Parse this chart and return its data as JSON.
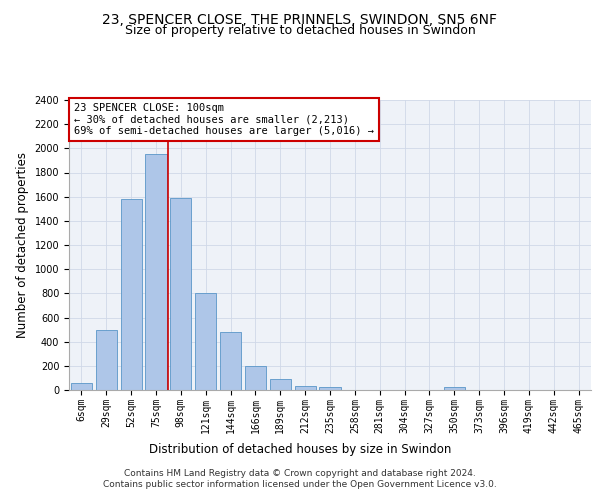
{
  "title_line1": "23, SPENCER CLOSE, THE PRINNELS, SWINDON, SN5 6NF",
  "title_line2": "Size of property relative to detached houses in Swindon",
  "xlabel": "Distribution of detached houses by size in Swindon",
  "ylabel": "Number of detached properties",
  "categories": [
    "6sqm",
    "29sqm",
    "52sqm",
    "75sqm",
    "98sqm",
    "121sqm",
    "144sqm",
    "166sqm",
    "189sqm",
    "212sqm",
    "235sqm",
    "258sqm",
    "281sqm",
    "304sqm",
    "327sqm",
    "350sqm",
    "373sqm",
    "396sqm",
    "419sqm",
    "442sqm",
    "465sqm"
  ],
  "bar_heights": [
    60,
    500,
    1580,
    1950,
    1590,
    800,
    480,
    195,
    90,
    35,
    28,
    0,
    0,
    0,
    0,
    22,
    0,
    0,
    0,
    0,
    0
  ],
  "bar_color": "#aec6e8",
  "bar_edge_color": "#5a96c8",
  "grid_color": "#d0d8e8",
  "background_color": "#eef2f8",
  "annotation_text": "23 SPENCER CLOSE: 100sqm\n← 30% of detached houses are smaller (2,213)\n69% of semi-detached houses are larger (5,016) →",
  "annotation_box_color": "#ffffff",
  "annotation_box_edge": "#cc0000",
  "vline_color": "#cc0000",
  "vline_x": 3.5,
  "ylim": [
    0,
    2400
  ],
  "yticks": [
    0,
    200,
    400,
    600,
    800,
    1000,
    1200,
    1400,
    1600,
    1800,
    2000,
    2200,
    2400
  ],
  "footer_line1": "Contains HM Land Registry data © Crown copyright and database right 2024.",
  "footer_line2": "Contains public sector information licensed under the Open Government Licence v3.0.",
  "title_fontsize": 10,
  "subtitle_fontsize": 9,
  "axis_label_fontsize": 8.5,
  "tick_fontsize": 7,
  "annotation_fontsize": 7.5,
  "footer_fontsize": 6.5
}
